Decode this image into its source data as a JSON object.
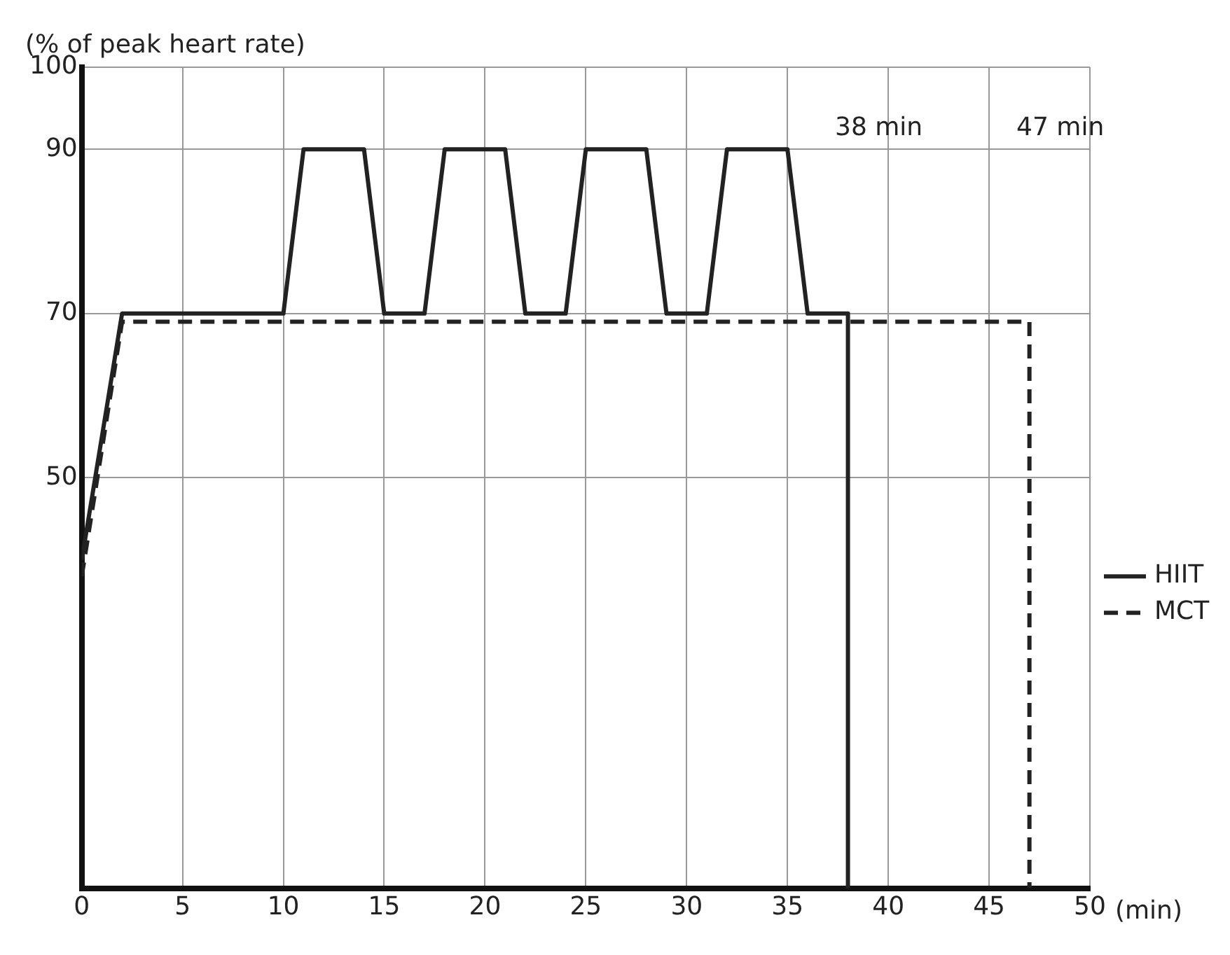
{
  "chart_data": {
    "type": "line",
    "ylabel": "(% of peak heart rate)",
    "xlabel": "(min)",
    "xlim": [
      0,
      50
    ],
    "xticks": [
      0,
      5,
      10,
      15,
      20,
      25,
      30,
      35,
      40,
      45,
      50
    ],
    "ylim": [
      0,
      100
    ],
    "yticks": [
      50,
      70,
      90,
      100
    ],
    "grid": true,
    "legend": "right",
    "marker": "none",
    "series": [
      {
        "name": "HIIT",
        "color": "#222222",
        "line_style": "solid",
        "x": [
          0,
          2,
          10,
          11,
          14,
          15,
          17,
          18,
          21,
          22,
          24,
          25,
          28,
          29,
          31,
          32,
          35,
          36,
          38,
          38
        ],
        "values": [
          40,
          70,
          70,
          90,
          90,
          70,
          70,
          90,
          90,
          70,
          70,
          90,
          90,
          70,
          70,
          90,
          90,
          70,
          70,
          0
        ]
      },
      {
        "name": "MCT",
        "color": "#222222",
        "line_style": "dashed",
        "x": [
          0,
          2,
          47,
          47
        ],
        "values": [
          38,
          69,
          69,
          0
        ]
      }
    ],
    "annotations": [
      "38 min",
      "47 min"
    ]
  }
}
